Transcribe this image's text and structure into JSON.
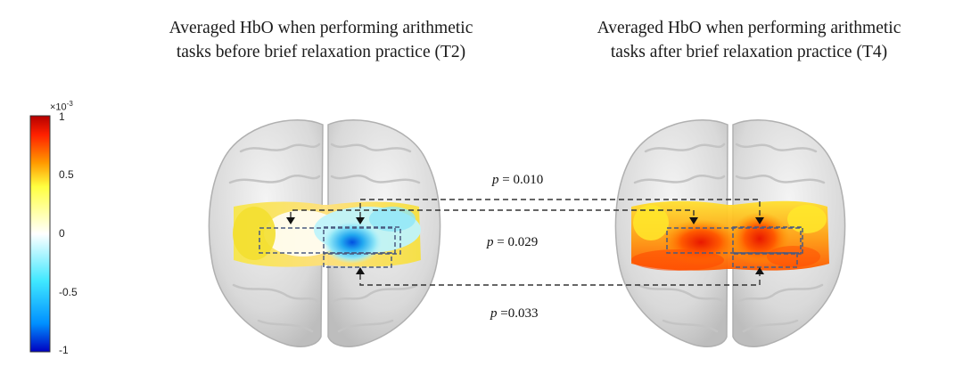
{
  "titles": {
    "left": {
      "line1": "Averaged HbO when performing arithmetic",
      "line2": "tasks before brief relaxation practice (T2)"
    },
    "right": {
      "line1": "Averaged HbO when performing arithmetic",
      "line2": "tasks after brief relaxation practice (T4)"
    }
  },
  "colorbar": {
    "exponent_base": "×10",
    "exponent_power": "-3",
    "ticks": [
      "1",
      "0.5",
      "0",
      "-0.5",
      "-1"
    ],
    "tick_values": [
      1,
      0.5,
      0,
      -0.5,
      -1
    ],
    "colors": [
      "#b40000",
      "#ff2000",
      "#ff9a00",
      "#ffff40",
      "#ffffff",
      "#40e8ff",
      "#0090ff",
      "#0000c0"
    ]
  },
  "comparisons": [
    {
      "p_label": "p",
      "p_value": "= 0.010"
    },
    {
      "p_label": "p",
      "p_value": "= 0.029"
    },
    {
      "p_label": "p",
      "p_value": "=0.033"
    }
  ]
}
